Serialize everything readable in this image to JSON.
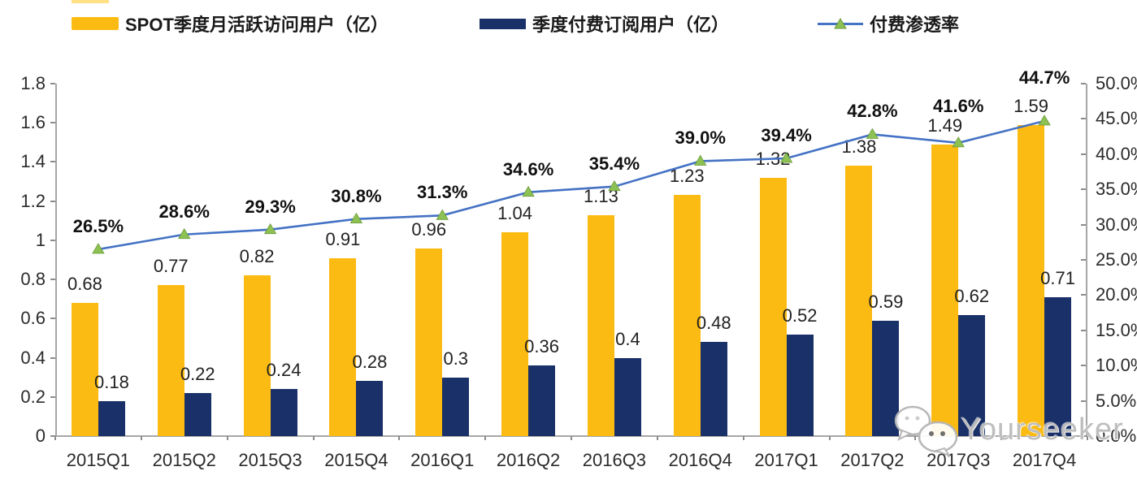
{
  "legend": {
    "items": [
      {
        "label": "SPOT季度月活跃访问用户（亿）",
        "swatch_color": "#FCBB13",
        "type": "bar"
      },
      {
        "label": "季度付费订阅用户（亿）",
        "swatch_color": "#1A3068",
        "type": "bar"
      },
      {
        "label": "付费渗透率",
        "line_color": "#4472C4",
        "marker_color": "#8DC153",
        "type": "line"
      }
    ]
  },
  "chart_data": {
    "type": "bar",
    "subtype": "grouped-bars-with-line",
    "categories": [
      "2015Q1",
      "2015Q2",
      "2015Q3",
      "2015Q4",
      "2016Q1",
      "2016Q2",
      "2016Q3",
      "2016Q4",
      "2017Q1",
      "2017Q2",
      "2017Q3",
      "2017Q4"
    ],
    "series": [
      {
        "name": "SPOT季度月活跃访问用户（亿）",
        "type": "bar",
        "axis": "left",
        "color": "#FCBB13",
        "values": [
          0.68,
          0.77,
          0.82,
          0.91,
          0.96,
          1.04,
          1.13,
          1.23,
          1.32,
          1.38,
          1.49,
          1.59
        ],
        "labels": [
          "0.68",
          "0.77",
          "0.82",
          "0.91",
          "0.96",
          "1.04",
          "1.13",
          "1.23",
          "1.32",
          "1.38",
          "1.49",
          "1.59"
        ]
      },
      {
        "name": "季度付费订阅用户（亿）",
        "type": "bar",
        "axis": "left",
        "color": "#1A3068",
        "values": [
          0.18,
          0.22,
          0.24,
          0.28,
          0.3,
          0.36,
          0.4,
          0.48,
          0.52,
          0.59,
          0.62,
          0.71
        ],
        "labels": [
          "0.18",
          "0.22",
          "0.24",
          "0.28",
          "0.3",
          "0.36",
          "0.4",
          "0.48",
          "0.52",
          "0.59",
          "0.62",
          "0.71"
        ]
      },
      {
        "name": "付费渗透率",
        "type": "line",
        "axis": "right",
        "color": "#4472C4",
        "marker": "triangle",
        "marker_color": "#8DC153",
        "values": [
          26.5,
          28.6,
          29.3,
          30.8,
          31.3,
          34.6,
          35.4,
          39.0,
          39.4,
          42.8,
          41.6,
          44.7
        ],
        "labels": [
          "26.5%",
          "28.6%",
          "29.3%",
          "30.8%",
          "31.3%",
          "34.6%",
          "35.4%",
          "39.0%",
          "39.4%",
          "42.8%",
          "41.6%",
          "44.7%"
        ]
      }
    ],
    "left_axis": {
      "min": 0,
      "max": 1.8,
      "tick_labels": [
        "0",
        "0.2",
        "0.4",
        "0.6",
        "0.8",
        "1",
        "1.2",
        "1.4",
        "1.6",
        "1.8"
      ]
    },
    "right_axis": {
      "min": 0,
      "max": 50,
      "tick_labels": [
        "0.0%",
        "5.0%",
        "10.0%",
        "15.0%",
        "20.0%",
        "25.0%",
        "30.0%",
        "35.0%",
        "40.0%",
        "45.0%",
        "50.0%"
      ]
    },
    "grid": false,
    "legend_position": "top",
    "title": ""
  },
  "watermark": {
    "text": "Yourseeker",
    "icon": "wechat-icon"
  },
  "colors": {
    "bar_yellow": "#FCBB13",
    "bar_navy": "#1A3068",
    "line_blue": "#4472C4",
    "marker_green": "#8DC153",
    "axis_gray": "#a6a6a6"
  }
}
